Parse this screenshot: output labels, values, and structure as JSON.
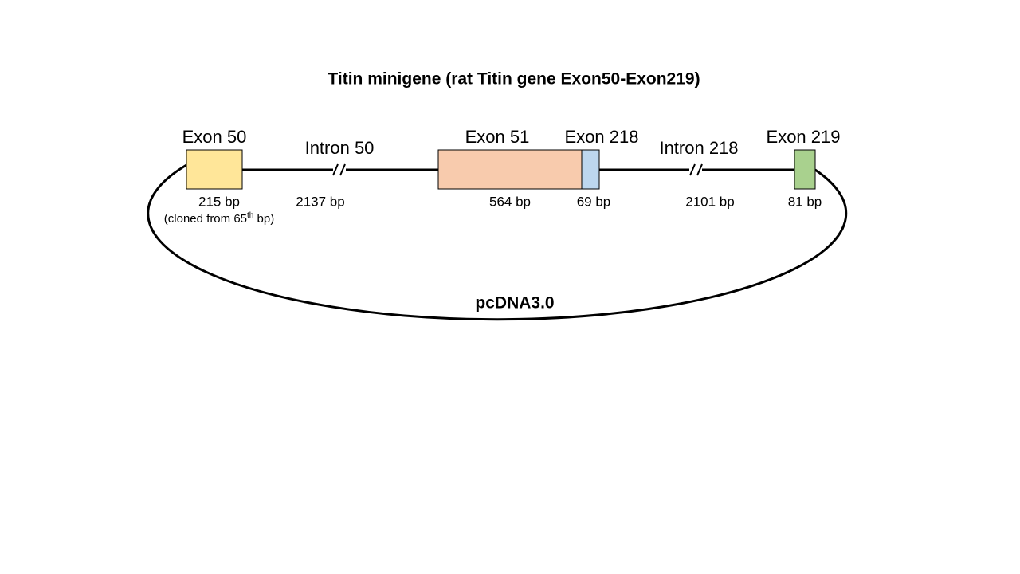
{
  "title": "Titin minigene (rat Titin gene Exon50-Exon219)",
  "segments": [
    {
      "label": "Exon 50",
      "size": "215 bp",
      "note": [
        "(cloned from 65",
        "th",
        " bp)"
      ]
    },
    {
      "label": "Intron 50",
      "size": "2137 bp"
    },
    {
      "label": "Exon 51",
      "size": "564 bp"
    },
    {
      "label": "Exon 218",
      "size": "69 bp"
    },
    {
      "label": "Intron 218",
      "size": "2101 bp"
    },
    {
      "label": "Exon 219",
      "size": "81 bp"
    }
  ],
  "vector": "pcDNA3.0"
}
